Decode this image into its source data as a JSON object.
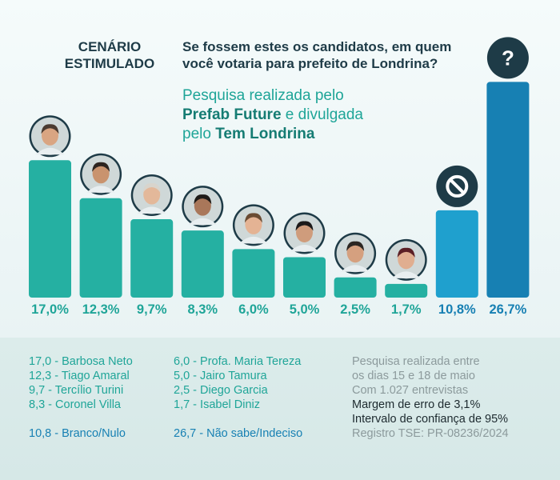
{
  "header": {
    "scenario_line1": "CENÁRIO",
    "scenario_line2": "ESTIMULADO",
    "question_line1": "Se fossem estes os candidatos, em quem",
    "question_line2": "você votaria para prefeito de Londrina?"
  },
  "source": {
    "line1": "Pesquisa realizada pelo",
    "line2_bold": "Prefab Future",
    "line2_rest": " e divulgada",
    "line3_plain": "pelo ",
    "line3_bold": "Tem Londrina"
  },
  "chart_data": {
    "type": "bar",
    "categories": [
      "Barbosa Neto",
      "Tiago Amaral",
      "Tercílio Turini",
      "Coronel Villa",
      "Profa. Maria Tereza",
      "Jairo Tamura",
      "Diego Garcia",
      "Isabel Diniz",
      "Branco/Nulo",
      "Não sabe/Indeciso"
    ],
    "values": [
      17.0,
      12.3,
      9.7,
      8.3,
      6.0,
      5.0,
      2.5,
      1.7,
      10.8,
      26.7
    ],
    "value_labels": [
      "17,0%",
      "12,3%",
      "9,7%",
      "8,3%",
      "6,0%",
      "5,0%",
      "2,5%",
      "1,7%",
      "10,8%",
      "26,7%"
    ],
    "colors": {
      "candidate": "#25b0a2",
      "candidate_label": "#1fa598",
      "blank": "#1fa0ce",
      "undecided": "#1780b3",
      "other_label": "#1780b3"
    },
    "icons": [
      "avatar",
      "avatar",
      "avatar",
      "avatar",
      "avatar",
      "avatar",
      "avatar",
      "avatar",
      "prohibited-icon",
      "question-mark-icon"
    ],
    "undecided_icon_text": "?"
  },
  "legend": {
    "col1": [
      "17,0 - Barbosa Neto",
      "12,3 - Tiago Amaral",
      "9,7 - Tercílio Turini",
      "8,3 - Coronel Villa"
    ],
    "col1_extra": "10,8 - Branco/Nulo",
    "col2": [
      "6,0 - Profa. Maria Tereza",
      "5,0 - Jairo Tamura",
      "2,5 - Diego Garcia",
      "1,7 - Isabel Diniz"
    ],
    "col2_extra": "26,7 - Não sabe/Indeciso"
  },
  "info": {
    "line1": "Pesquisa realizada entre",
    "line2": "os dias 15 e 18 de maio",
    "line3": "Com 1.027 entrevistas",
    "line4": "Margem de erro de 3,1%",
    "line5": "Intervalo de confiança de 95%",
    "line6": "Registro TSE: PR-08236/2024"
  }
}
